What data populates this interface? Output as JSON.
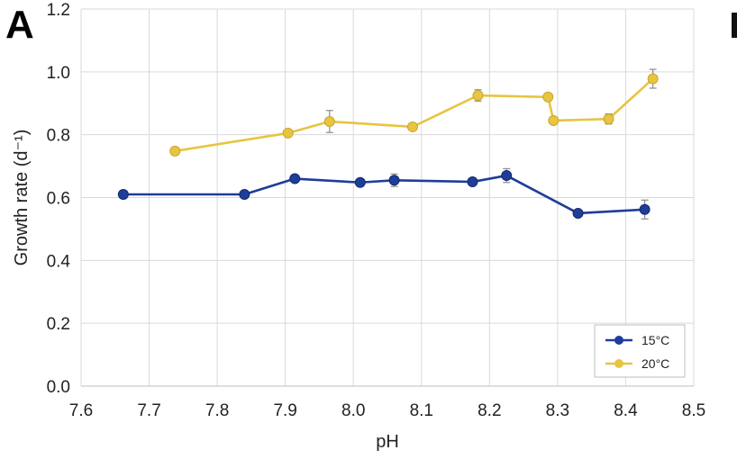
{
  "panel_label": "A",
  "chart_data": {
    "type": "line",
    "xlabel": "pH",
    "ylabel": "Growth rate (d⁻¹)",
    "xlim": [
      7.6,
      8.5
    ],
    "ylim": [
      0.0,
      1.2
    ],
    "xticks": [
      "7.6",
      "7.7",
      "7.8",
      "7.9",
      "8.0",
      "8.1",
      "8.2",
      "8.3",
      "8.4",
      "8.5"
    ],
    "yticks": [
      "0.0",
      "0.2",
      "0.4",
      "0.6",
      "0.8",
      "1.0",
      "1.2"
    ],
    "grid": true,
    "legend_position": "bottom-right",
    "series": [
      {
        "name": "15°C",
        "color": "#1f3d99",
        "points": [
          {
            "x": 7.662,
            "y": 0.61,
            "err": 0.012
          },
          {
            "x": 7.84,
            "y": 0.61,
            "err": 0.01
          },
          {
            "x": 7.914,
            "y": 0.66,
            "err": 0.008
          },
          {
            "x": 8.01,
            "y": 0.648,
            "err": 0.008
          },
          {
            "x": 8.06,
            "y": 0.655,
            "err": 0.02
          },
          {
            "x": 8.175,
            "y": 0.65,
            "err": 0.008
          },
          {
            "x": 8.225,
            "y": 0.67,
            "err": 0.022
          },
          {
            "x": 8.33,
            "y": 0.55,
            "err": 0.006
          },
          {
            "x": 8.428,
            "y": 0.562,
            "err": 0.03
          }
        ]
      },
      {
        "name": "20°C",
        "color": "#e8c441",
        "points": [
          {
            "x": 7.738,
            "y": 0.748,
            "err": 0.012
          },
          {
            "x": 7.904,
            "y": 0.805,
            "err": 0.008
          },
          {
            "x": 7.965,
            "y": 0.842,
            "err": 0.035
          },
          {
            "x": 8.087,
            "y": 0.825,
            "err": 0.008
          },
          {
            "x": 8.183,
            "y": 0.925,
            "err": 0.018
          },
          {
            "x": 8.286,
            "y": 0.92,
            "err": 0.006
          },
          {
            "x": 8.294,
            "y": 0.845,
            "err": 0.01
          },
          {
            "x": 8.375,
            "y": 0.85,
            "err": 0.016
          },
          {
            "x": 8.44,
            "y": 0.978,
            "err": 0.03
          }
        ]
      }
    ]
  }
}
